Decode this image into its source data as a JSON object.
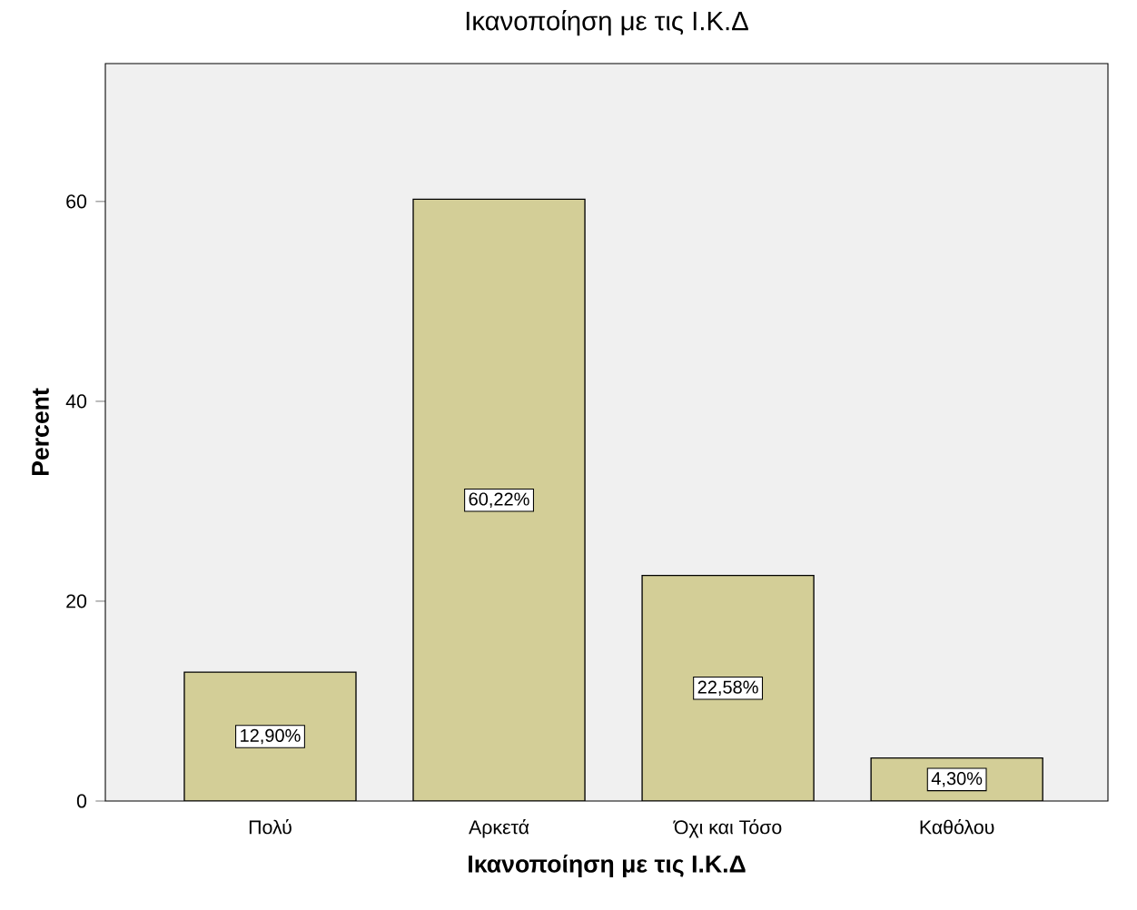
{
  "chart_data": {
    "type": "bar",
    "title": "Ικανοποίηση με τις Ι.Κ.Δ",
    "xlabel": "Ικανοποίηση με τις Ι.Κ.Δ",
    "ylabel": "Percent",
    "categories": [
      "Πολύ",
      "Αρκετά",
      "Όχι και Τόσο",
      "Καθόλου"
    ],
    "values": [
      12.9,
      60.22,
      22.58,
      4.3
    ],
    "value_labels": [
      "12,90%",
      "60,22%",
      "22,58%",
      "4,30%"
    ],
    "color": "#d3ce97",
    "ylim": [
      0,
      73.8
    ],
    "yticks": [
      0,
      20,
      40,
      60
    ],
    "grid": false
  }
}
